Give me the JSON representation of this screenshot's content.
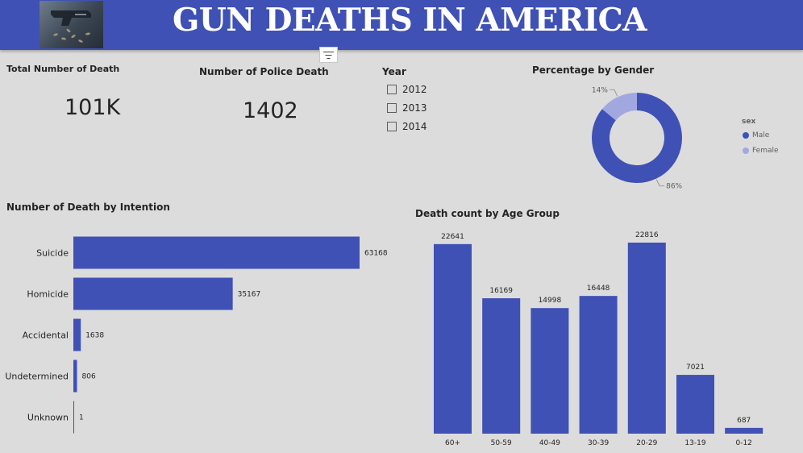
{
  "header": {
    "title": "GUN DEATHS IN AMERICA"
  },
  "kpi_total": {
    "title": "Total Number of Death",
    "value": "101K"
  },
  "kpi_police": {
    "title": "Number of Police Death",
    "value": "1402"
  },
  "year_slicer": {
    "title": "Year",
    "options": [
      {
        "label": "2012",
        "checked": false
      },
      {
        "label": "2013",
        "checked": false
      },
      {
        "label": "2014",
        "checked": false
      }
    ]
  },
  "gender_chart": {
    "title": "Percentage by Gender",
    "legend_title": "sex",
    "legend": [
      "Male",
      "Female"
    ]
  },
  "intention_chart": {
    "title": "Number of Death by Intention"
  },
  "age_chart": {
    "title": "Death count by Age Group"
  },
  "colors": {
    "primary": "#3f51b5",
    "secondary": "#a1a8e0",
    "header": "#3f51b5"
  },
  "chart_data": [
    {
      "type": "pie",
      "title": "Percentage by Gender",
      "legend_title": "sex",
      "categories": [
        "Male",
        "Female"
      ],
      "values": [
        86,
        14
      ],
      "labels": [
        "86%",
        "14%"
      ],
      "donut": true,
      "legend": "right"
    },
    {
      "type": "bar",
      "orientation": "horizontal",
      "title": "Number of Death by Intention",
      "categories": [
        "Suicide",
        "Homicide",
        "Accidental",
        "Undetermined",
        "Unknown"
      ],
      "values": [
        63168,
        35167,
        1638,
        806,
        1
      ],
      "grid": false
    },
    {
      "type": "bar",
      "orientation": "vertical",
      "title": "Death count by Age Group",
      "categories": [
        "60+",
        "50-59",
        "40-49",
        "30-39",
        "20-29",
        "13-19",
        "0-12"
      ],
      "values": [
        22641,
        16169,
        14998,
        16448,
        22816,
        7021,
        687
      ],
      "grid": false
    }
  ]
}
